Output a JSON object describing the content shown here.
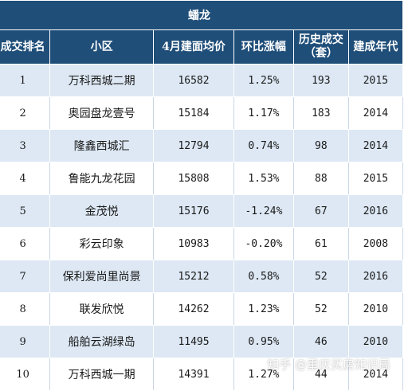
{
  "table": {
    "title": "蟠龙",
    "headers": [
      "成交排名",
      "小区",
      "4月建面均价",
      "环比涨幅",
      "历史成交（套）",
      "建成年代"
    ],
    "rows": [
      [
        "1",
        "万科西城二期",
        "16582",
        "1.25%",
        "193",
        "2015"
      ],
      [
        "2",
        "奥园盘龙壹号",
        "15184",
        "1.17%",
        "183",
        "2014"
      ],
      [
        "3",
        "隆鑫西城汇",
        "12794",
        "0.74%",
        "98",
        "2014"
      ],
      [
        "4",
        "鲁能九龙花园",
        "15808",
        "1.53%",
        "88",
        "2015"
      ],
      [
        "5",
        "金茂悦",
        "15176",
        "-1.24%",
        "67",
        "2016"
      ],
      [
        "6",
        "彩云印象",
        "10983",
        "-0.20%",
        "61",
        "2008"
      ],
      [
        "7",
        "保利爱尚里尚景",
        "15212",
        "0.58%",
        "52",
        "2016"
      ],
      [
        "8",
        "联发欣悦",
        "14262",
        "1.23%",
        "52",
        "2010"
      ],
      [
        "9",
        "船舶云湖绿岛",
        "11495",
        "0.95%",
        "46",
        "2010"
      ],
      [
        "10",
        "万科西城一期",
        "14391",
        "1.27%",
        "44",
        "2014"
      ]
    ]
  },
  "watermark": "知乎 @重庆买房知识局"
}
